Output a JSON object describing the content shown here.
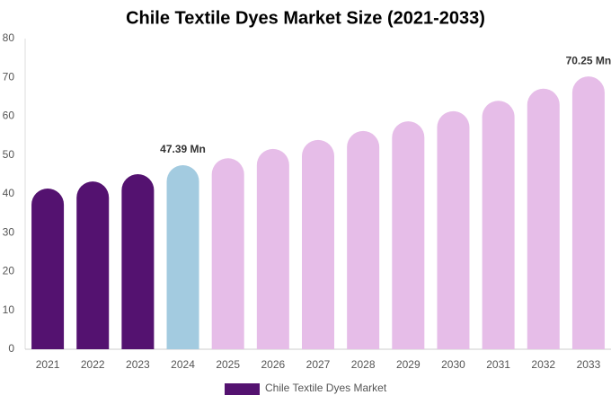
{
  "chart_data": {
    "type": "bar",
    "title": "Chile Textile Dyes Market Size (2021-2033)",
    "categories": [
      "2021",
      "2022",
      "2023",
      "2024",
      "2025",
      "2026",
      "2027",
      "2028",
      "2029",
      "2030",
      "2031",
      "2032",
      "2033"
    ],
    "series": [
      {
        "name": "Chile Textile Dyes Market",
        "color": "#541270",
        "values": [
          41.4,
          43.2,
          45.1,
          47.39,
          49.2,
          51.6,
          53.9,
          56.2,
          58.7,
          61.3,
          64.0,
          67.1,
          70.25
        ],
        "value_labels": [
          null,
          null,
          null,
          "47.39 Mn",
          null,
          null,
          null,
          null,
          null,
          null,
          null,
          null,
          "70.25 Mn"
        ],
        "colors": [
          "#541270",
          "#541270",
          "#541270",
          "#a3cbe0",
          "#e6bde8",
          "#e6bde8",
          "#e6bde8",
          "#e6bde8",
          "#e6bde8",
          "#e6bde8",
          "#e6bde8",
          "#e6bde8",
          "#e6bde8"
        ]
      }
    ],
    "ylim": [
      0,
      80
    ],
    "yticks": [
      0,
      10,
      20,
      30,
      40,
      50,
      60,
      70,
      80
    ],
    "grid": false
  }
}
